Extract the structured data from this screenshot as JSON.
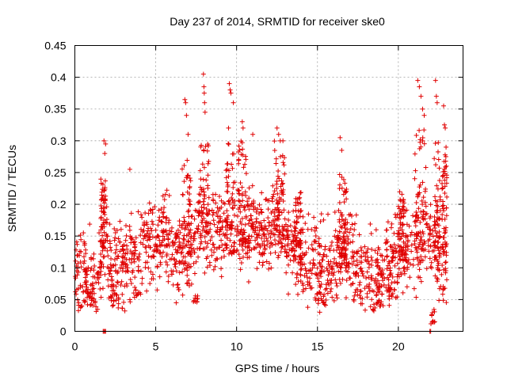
{
  "chart_data": {
    "type": "scatter",
    "title": "Day 237 of 2014, SRMTID for receiver ske0",
    "xlabel": "GPS time / hours",
    "ylabel": "SRMTID / TECUs",
    "xlim": [
      0,
      24
    ],
    "ylim": [
      0,
      0.45
    ],
    "grid": true,
    "marker": "plus",
    "series_color": "#e00000",
    "xticks": [
      0,
      5,
      10,
      15,
      20
    ],
    "xtick_labels": [
      "0",
      "5",
      "10",
      "15",
      "20"
    ],
    "yticks": [
      0,
      0.05,
      0.1,
      0.15,
      0.2,
      0.25,
      0.3,
      0.35,
      0.4,
      0.45
    ],
    "ytick_labels": [
      "0",
      "0.05",
      "0.1",
      "0.15",
      "0.2",
      "0.25",
      "0.3",
      "0.35",
      "0.4",
      "0.45"
    ],
    "trend": [
      [
        0,
        0.085
      ],
      [
        0.5,
        0.09
      ],
      [
        1,
        0.08
      ],
      [
        1.5,
        0.095
      ],
      [
        1.8,
        0.15
      ],
      [
        2.2,
        0.1
      ],
      [
        3,
        0.105
      ],
      [
        4,
        0.13
      ],
      [
        5,
        0.14
      ],
      [
        5.5,
        0.16
      ],
      [
        6,
        0.13
      ],
      [
        6.5,
        0.12
      ],
      [
        7,
        0.13
      ],
      [
        7.5,
        0.15
      ],
      [
        8,
        0.17
      ],
      [
        8.5,
        0.16
      ],
      [
        9,
        0.165
      ],
      [
        9.5,
        0.17
      ],
      [
        10,
        0.155
      ],
      [
        11,
        0.16
      ],
      [
        12,
        0.155
      ],
      [
        12.5,
        0.18
      ],
      [
        13,
        0.15
      ],
      [
        14,
        0.12
      ],
      [
        15,
        0.1
      ],
      [
        15.5,
        0.095
      ],
      [
        16,
        0.12
      ],
      [
        17,
        0.13
      ],
      [
        17.5,
        0.09
      ],
      [
        18.5,
        0.085
      ],
      [
        19.5,
        0.1
      ],
      [
        20,
        0.13
      ],
      [
        20.5,
        0.13
      ],
      [
        21,
        0.12
      ],
      [
        21.5,
        0.16
      ],
      [
        22,
        0.14
      ],
      [
        22.5,
        0.12
      ],
      [
        23,
        0.11
      ]
    ],
    "spikes": [
      [
        1.8,
        0.3
      ],
      [
        1.85,
        0.28
      ],
      [
        1.9,
        0.295
      ],
      [
        3.4,
        0.255
      ],
      [
        6.8,
        0.365
      ],
      [
        6.85,
        0.36
      ],
      [
        6.9,
        0.34
      ],
      [
        7.0,
        0.31
      ],
      [
        7.95,
        0.405
      ],
      [
        7.98,
        0.385
      ],
      [
        8.0,
        0.375
      ],
      [
        8.02,
        0.36
      ],
      [
        8.05,
        0.345
      ],
      [
        9.55,
        0.39
      ],
      [
        9.6,
        0.38
      ],
      [
        9.65,
        0.375
      ],
      [
        9.5,
        0.32
      ],
      [
        9.8,
        0.36
      ],
      [
        10.35,
        0.33
      ],
      [
        10.4,
        0.32
      ],
      [
        11.0,
        0.31
      ],
      [
        12.5,
        0.32
      ],
      [
        12.6,
        0.31
      ],
      [
        12.7,
        0.3
      ],
      [
        16.4,
        0.305
      ],
      [
        16.5,
        0.285
      ],
      [
        21.2,
        0.395
      ],
      [
        21.3,
        0.385
      ],
      [
        21.4,
        0.37
      ],
      [
        21.5,
        0.35
      ],
      [
        21.6,
        0.34
      ],
      [
        22.3,
        0.395
      ],
      [
        22.35,
        0.37
      ],
      [
        22.4,
        0.36
      ],
      [
        22.8,
        0.355
      ],
      [
        22.85,
        0.325
      ],
      [
        22.9,
        0.32
      ],
      [
        22.95,
        0.29
      ]
    ],
    "zeros": [
      [
        1.75,
        0.0
      ],
      [
        1.8,
        0.0
      ],
      [
        1.85,
        0.0
      ],
      [
        1.9,
        0.0
      ],
      [
        21.95,
        0.0
      ],
      [
        22.0,
        0.0
      ]
    ],
    "bursts": [
      [
        1.6,
        1.9,
        0.13,
        0.24
      ],
      [
        6.6,
        7.2,
        0.12,
        0.27
      ],
      [
        7.7,
        8.3,
        0.13,
        0.3
      ],
      [
        9.3,
        9.9,
        0.12,
        0.3
      ],
      [
        10.1,
        10.8,
        0.12,
        0.3
      ],
      [
        12.3,
        13.0,
        0.12,
        0.3
      ],
      [
        13.5,
        14.0,
        0.1,
        0.22
      ],
      [
        16.3,
        16.8,
        0.1,
        0.25
      ],
      [
        20.0,
        20.5,
        0.11,
        0.22
      ],
      [
        21.0,
        21.7,
        0.12,
        0.33
      ],
      [
        22.2,
        22.6,
        0.1,
        0.3
      ],
      [
        22.7,
        23.0,
        0.12,
        0.28
      ]
    ],
    "dips": [
      [
        0.5,
        1.2,
        0.04,
        0.07
      ],
      [
        2.1,
        2.6,
        0.04,
        0.07
      ],
      [
        3.6,
        4.1,
        0.05,
        0.07
      ],
      [
        7.3,
        7.6,
        0.045,
        0.06
      ],
      [
        15.0,
        15.6,
        0.04,
        0.07
      ],
      [
        18.4,
        19.0,
        0.03,
        0.06
      ],
      [
        19.3,
        19.8,
        0.05,
        0.07
      ],
      [
        22.0,
        22.3,
        0.01,
        0.04
      ]
    ],
    "n_base_points": 1700
  }
}
